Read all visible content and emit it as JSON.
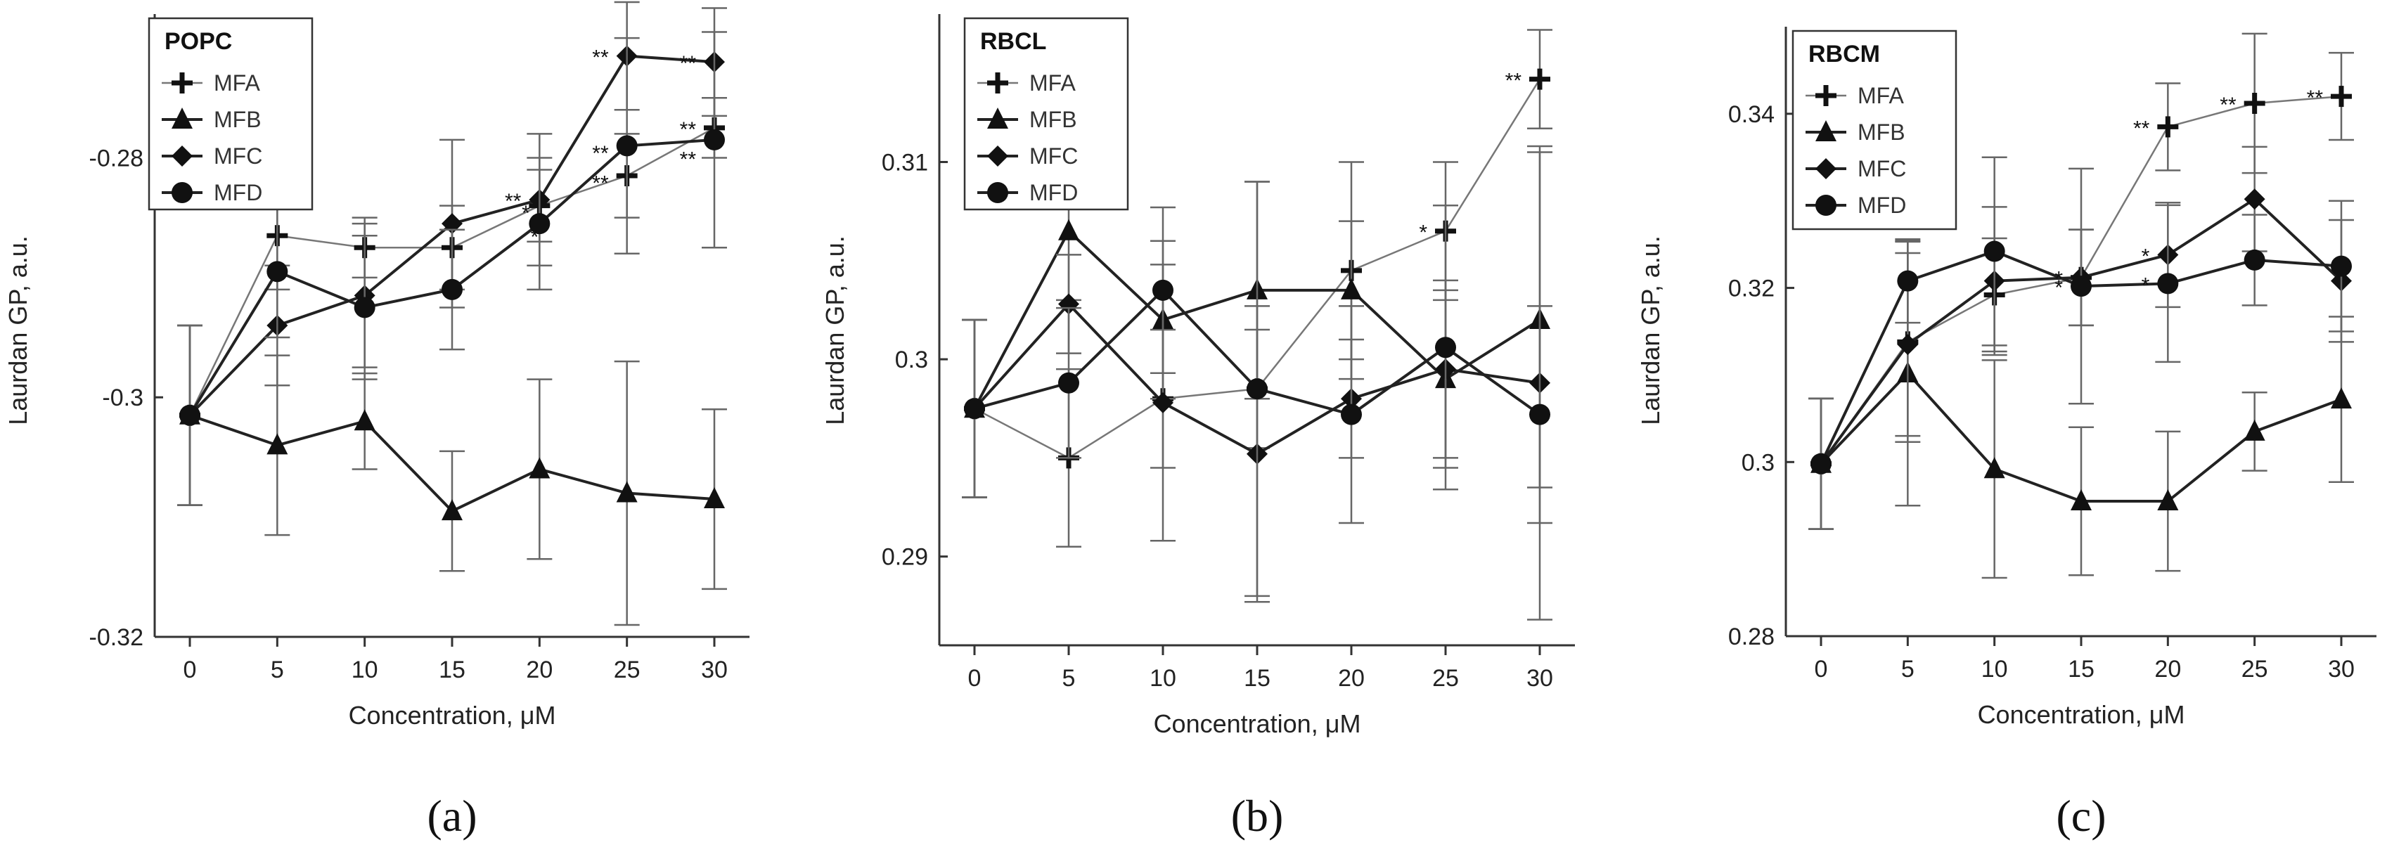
{
  "chart_data": [
    {
      "type": "line",
      "legend_title": "POPC",
      "panel_label": "(a)",
      "xlabel": "Concentration, μM",
      "ylabel": "Laurdan GP, a.u.",
      "x": [
        0,
        5,
        10,
        15,
        20,
        25,
        30
      ],
      "xticks": [
        "0",
        "5",
        "10",
        "15",
        "20",
        "25",
        "30"
      ],
      "ylim": [
        -0.32,
        -0.268
      ],
      "yticks": [
        -0.32,
        -0.3,
        -0.28
      ],
      "ytick_labels": [
        "-0.32",
        "-0.3",
        "-0.28"
      ],
      "legend_position": "top-left",
      "series": [
        {
          "name": "MFA",
          "marker": "plus",
          "line": "thin",
          "values": [
            -0.3015,
            -0.2865,
            -0.2875,
            -0.2875,
            -0.284,
            -0.2815,
            -0.2775
          ],
          "errors": [
            0.0075,
            0.0045,
            0.0025,
            0.0035,
            0.003,
            0.0035,
            0.0025
          ]
        },
        {
          "name": "MFB",
          "marker": "triangle",
          "line": "thick",
          "values": [
            -0.3015,
            -0.304,
            -0.302,
            -0.3095,
            -0.306,
            -0.308,
            -0.3085
          ],
          "errors": [
            0.0075,
            0.0075,
            0.004,
            0.005,
            0.0075,
            0.011,
            0.0075
          ]
        },
        {
          "name": "MFC",
          "marker": "diamond",
          "line": "thick",
          "values": [
            -0.3015,
            -0.294,
            -0.2915,
            -0.2855,
            -0.2835,
            -0.2715,
            -0.272
          ],
          "errors": [
            0.0075,
            0.005,
            0.006,
            0.007,
            0.0055,
            0.0045,
            0.0045
          ]
        },
        {
          "name": "MFD",
          "marker": "circle",
          "line": "thick",
          "values": [
            -0.3015,
            -0.2895,
            -0.2925,
            -0.291,
            -0.2855,
            -0.279,
            -0.2785
          ],
          "errors": [
            0.0075,
            0.0055,
            0.006,
            0.005,
            0.0055,
            0.009,
            0.009
          ]
        }
      ],
      "annotations": [
        {
          "x": 20,
          "y": -0.2835,
          "text": "**"
        },
        {
          "x": 20.5,
          "y": -0.2845,
          "text": "*"
        },
        {
          "x": 21,
          "y": -0.2865,
          "text": "*"
        },
        {
          "x": 25,
          "y": -0.2715,
          "text": "**"
        },
        {
          "x": 25,
          "y": -0.2795,
          "text": "**"
        },
        {
          "x": 25,
          "y": -0.282,
          "text": "**"
        },
        {
          "x": 30,
          "y": -0.272,
          "text": "**"
        },
        {
          "x": 30,
          "y": -0.2775,
          "text": "**"
        },
        {
          "x": 30,
          "y": -0.28,
          "text": "**"
        }
      ]
    },
    {
      "type": "line",
      "legend_title": "RBCL",
      "panel_label": "(b)",
      "xlabel": "Concentration, μM",
      "ylabel": "Laurdan GP, a.u.",
      "x": [
        0,
        5,
        10,
        15,
        20,
        25,
        30
      ],
      "xticks": [
        "0",
        "5",
        "10",
        "15",
        "20",
        "25",
        "30"
      ],
      "ylim": [
        0.2855,
        0.3175
      ],
      "yticks": [
        0.29,
        0.3,
        0.31
      ],
      "ytick_labels": [
        "0.29",
        "0.3",
        "0.31"
      ],
      "legend_position": "top-left",
      "series": [
        {
          "name": "MFA",
          "marker": "plus",
          "line": "thin",
          "values": [
            0.2975,
            0.295,
            0.298,
            0.2985,
            0.3045,
            0.3065,
            0.3142
          ],
          "errors": [
            0.0045,
            0.0045,
            0.0035,
            0.003,
            0.0055,
            0.0035,
            0.0025
          ]
        },
        {
          "name": "MFB",
          "marker": "triangle",
          "line": "thick",
          "values": [
            0.2975,
            0.3065,
            0.302,
            0.3035,
            0.3035,
            0.299,
            0.302
          ],
          "errors": [
            0.0045,
            0.0035,
            0.004,
            0.0055,
            0.0035,
            0.0045,
            0.0085
          ]
        },
        {
          "name": "MFC",
          "marker": "diamond",
          "line": "thick",
          "values": [
            0.2975,
            0.3028,
            0.2978,
            0.2952,
            0.298,
            0.2995,
            0.2988
          ],
          "errors": [
            0.0045,
            0.0025,
            0.007,
            0.0075,
            0.003,
            0.0045,
            0.012
          ]
        },
        {
          "name": "MFD",
          "marker": "circle",
          "line": "thick",
          "values": [
            0.2975,
            0.2988,
            0.3035,
            0.2985,
            0.2972,
            0.3006,
            0.2972
          ],
          "errors": [
            0.0045,
            0.0038,
            0.0042,
            0.0105,
            0.0055,
            0.0072,
            0.0055
          ]
        }
      ],
      "annotations": [
        {
          "x": 25,
          "y": 0.3065,
          "text": "*"
        },
        {
          "x": 30,
          "y": 0.3142,
          "text": "**"
        }
      ]
    },
    {
      "type": "line",
      "legend_title": "RBCM",
      "panel_label": "(c)",
      "xlabel": "Concentration, μM",
      "ylabel": "Laurdan GP, a.u.",
      "x": [
        0,
        5,
        10,
        15,
        20,
        25,
        30
      ],
      "xticks": [
        "0",
        "5",
        "10",
        "15",
        "20",
        "25",
        "30"
      ],
      "ylim": [
        0.28,
        0.35
      ],
      "yticks": [
        0.28,
        0.3,
        0.32,
        0.34
      ],
      "ytick_labels": [
        "0.28",
        "0.3",
        "0.32",
        "0.34"
      ],
      "legend_position": "top-left",
      "series": [
        {
          "name": "MFA",
          "marker": "plus",
          "line": "thin",
          "values": [
            0.2998,
            0.3138,
            0.3192,
            0.3212,
            0.3385,
            0.3412,
            0.342
          ],
          "errors": [
            0.0075,
            0.0115,
            0.0065,
            0.0055,
            0.005,
            0.008,
            0.005
          ]
        },
        {
          "name": "MFB",
          "marker": "triangle",
          "line": "thick",
          "values": [
            0.2998,
            0.3102,
            0.2992,
            0.2955,
            0.2955,
            0.3035,
            0.3072
          ],
          "errors": [
            0.0075,
            0.0152,
            0.0125,
            0.0085,
            0.008,
            0.0045,
            0.0095
          ]
        },
        {
          "name": "MFC",
          "marker": "diamond",
          "line": "thick",
          "values": [
            0.2998,
            0.3135,
            0.3208,
            0.3212,
            0.3238,
            0.3302,
            0.3208
          ],
          "errors": [
            0.0075,
            0.0105,
            0.0085,
            0.0055,
            0.006,
            0.006,
            0.007
          ]
        },
        {
          "name": "MFD",
          "marker": "circle",
          "line": "thick",
          "values": [
            0.2998,
            0.3208,
            0.3242,
            0.3202,
            0.3205,
            0.3232,
            0.3225
          ],
          "errors": [
            0.0075,
            0.0048,
            0.0108,
            0.0135,
            0.009,
            0.0052,
            0.0075
          ]
        }
      ],
      "annotations": [
        {
          "x": 15,
          "y": 0.3212,
          "text": "*"
        },
        {
          "x": 15,
          "y": 0.3202,
          "text": "*"
        },
        {
          "x": 20,
          "y": 0.3385,
          "text": "**"
        },
        {
          "x": 20,
          "y": 0.3238,
          "text": "*"
        },
        {
          "x": 20,
          "y": 0.3205,
          "text": "*"
        },
        {
          "x": 25,
          "y": 0.3412,
          "text": "**"
        },
        {
          "x": 30,
          "y": 0.342,
          "text": "**"
        }
      ]
    }
  ]
}
